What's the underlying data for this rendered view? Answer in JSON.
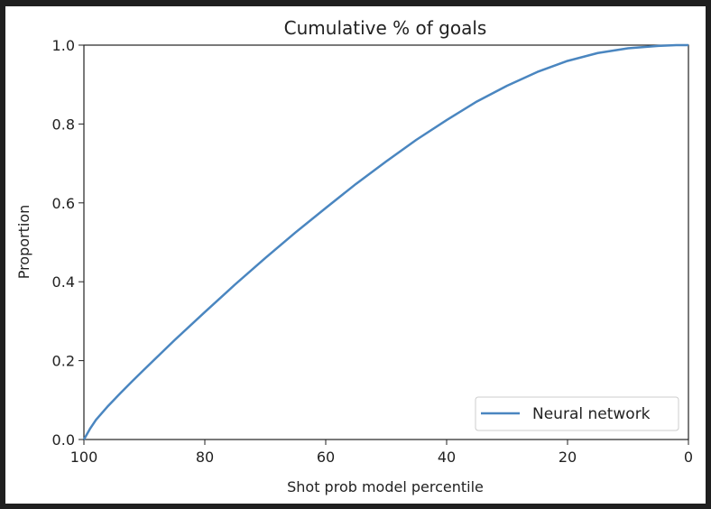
{
  "chart_data": {
    "type": "line",
    "title": "Cumulative % of goals",
    "xlabel": "Shot prob model percentile",
    "ylabel": "Proportion",
    "xlim": [
      100,
      0
    ],
    "ylim": [
      0.0,
      1.0
    ],
    "xticks": [
      "100",
      "80",
      "60",
      "40",
      "20",
      "0"
    ],
    "yticks": [
      "0.0",
      "0.2",
      "0.4",
      "0.6",
      "0.8",
      "1.0"
    ],
    "grid": false,
    "legend_position": "lower-right",
    "series": [
      {
        "name": "Neural network",
        "color": "#4a86c0",
        "x": [
          100,
          99,
          98,
          96,
          94,
          92,
          90,
          85,
          80,
          75,
          70,
          65,
          60,
          55,
          50,
          45,
          40,
          35,
          30,
          25,
          20,
          15,
          10,
          5,
          2,
          0
        ],
        "y": [
          0.0,
          0.027,
          0.05,
          0.085,
          0.117,
          0.148,
          0.178,
          0.252,
          0.323,
          0.393,
          0.46,
          0.525,
          0.587,
          0.648,
          0.705,
          0.76,
          0.81,
          0.857,
          0.897,
          0.932,
          0.96,
          0.98,
          0.992,
          0.998,
          1.0,
          1.0
        ]
      }
    ]
  }
}
